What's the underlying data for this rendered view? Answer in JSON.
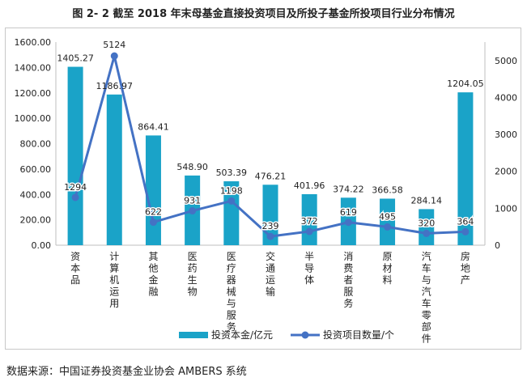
{
  "title": "图 2- 2  截至 2018 年末母基金直接投资项目及所投子基金所投项目行业分布情况",
  "source": "数据来源：中国证券投资基金业协会 AMBERS 系统",
  "chart_data": {
    "type": "bar+line",
    "categories": [
      "资本品",
      "计算机运用",
      "其他金融",
      "医药生物",
      "医疗器械与服务",
      "交通运输",
      "半导体",
      "消费者服务",
      "原材料",
      "汽车与汽车零部件",
      "房地产"
    ],
    "series": [
      {
        "name": "投资本金/亿元",
        "type": "bar",
        "axis": "left",
        "color": "#1aa3c8",
        "values": [
          1405.27,
          1186.97,
          864.41,
          548.9,
          503.39,
          476.21,
          401.96,
          374.22,
          366.58,
          284.14,
          1204.05
        ],
        "labels": [
          "1405.27",
          "1186.97",
          "864.41",
          "548.90",
          "503.39",
          "476.21",
          "401.96",
          "374.22",
          "366.58",
          "284.14",
          "1204.05"
        ]
      },
      {
        "name": "投资项目数量/个",
        "type": "line",
        "axis": "right",
        "color": "#4472c4",
        "values": [
          1294,
          5124,
          622,
          931,
          1198,
          239,
          372,
          619,
          495,
          320,
          364
        ],
        "labels": [
          "1294",
          "5124",
          "622",
          "931",
          "1198",
          "239",
          "372",
          "619",
          "495",
          "320",
          "364"
        ]
      }
    ],
    "y_left": {
      "range": [
        0,
        1600
      ],
      "ticks": [
        0,
        200,
        400,
        600,
        800,
        1000,
        1200,
        1400,
        1600
      ],
      "tick_labels": [
        "0.00",
        "200.00",
        "400.00",
        "600.00",
        "800.00",
        "1000.00",
        "1200.00",
        "1400.00",
        "1600.00"
      ]
    },
    "y_right": {
      "range": [
        0,
        5500
      ],
      "ticks": [
        0,
        1000,
        2000,
        3000,
        4000,
        5000
      ],
      "tick_labels": [
        "0",
        "1000",
        "2000",
        "3000",
        "4000",
        "5000"
      ]
    },
    "legend_position": "bottom",
    "grid": false
  }
}
